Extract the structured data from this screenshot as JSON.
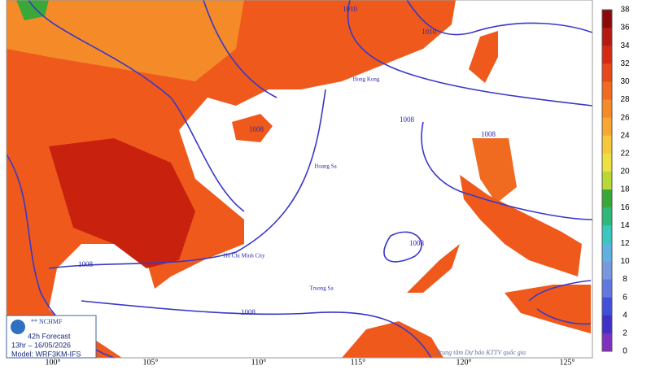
{
  "map": {
    "colorbar": {
      "ticks": [
        38,
        36,
        34,
        32,
        30,
        28,
        26,
        24,
        22,
        20,
        18,
        16,
        14,
        12,
        10,
        8,
        6,
        4,
        2,
        0
      ],
      "colors": [
        "#8b0a0a",
        "#b51a10",
        "#d62a12",
        "#e8481a",
        "#f06a20",
        "#f58a28",
        "#f8a832",
        "#f6c83c",
        "#eee040",
        "#b8d838",
        "#3aa838",
        "#30b878",
        "#38c8c0",
        "#60b0e0",
        "#7898e0",
        "#6078e0",
        "#4050d8",
        "#4030c8",
        "#8030c0"
      ]
    },
    "longitudes": [
      "100°",
      "105°",
      "110°",
      "115°",
      "120°",
      "125°"
    ],
    "isobars": [
      {
        "label": "1008"
      },
      {
        "label": "1008"
      },
      {
        "label": "1008"
      },
      {
        "label": "1008"
      },
      {
        "label": "1008"
      },
      {
        "label": "1010"
      },
      {
        "label": "1008"
      },
      {
        "label": "1010"
      }
    ],
    "places": [
      "Hong Kong",
      "Hoang Sa",
      "Truong Sa",
      "Ho Chi Minh City"
    ],
    "info_box": {
      "logo": "** NCHMF",
      "forecast": "42h Forecast",
      "time": "13hr – 16/05/2026",
      "model": "Model: WRF3KM-IFS"
    },
    "credit": "...Trung tâm Dự báo KTTV quốc gia"
  }
}
